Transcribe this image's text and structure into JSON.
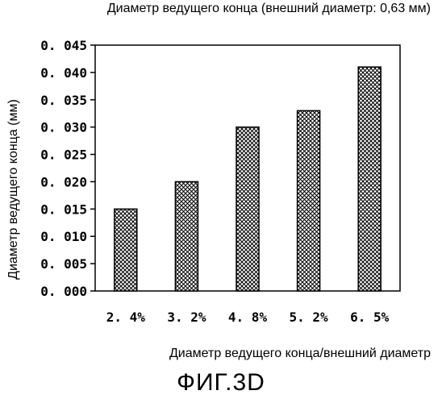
{
  "chart_data": {
    "type": "bar",
    "title": "Диаметр ведущего конца (внешний диаметр: 0,63 мм)",
    "xlabel": "Диаметр ведущего конца/внешний диаметр",
    "ylabel": "Диаметр ведущего конца (мм)",
    "categories": [
      "2. 4%",
      "3. 2%",
      "4. 8%",
      "5. 2%",
      "6. 5%"
    ],
    "values": [
      0.015,
      0.02,
      0.03,
      0.033,
      0.041
    ],
    "ylim": [
      0,
      0.045
    ],
    "yticks": [
      "0. 000",
      "0. 005",
      "0. 010",
      "0. 015",
      "0. 020",
      "0. 025",
      "0. 030",
      "0. 035",
      "0. 040",
      "0. 045"
    ],
    "grid": false,
    "bar_fill": "crosshatch",
    "colors": {
      "bar_stroke": "#000000",
      "hatch": "#000000",
      "background": "#ffffff"
    }
  },
  "figure_label": "ФИГ.3D"
}
